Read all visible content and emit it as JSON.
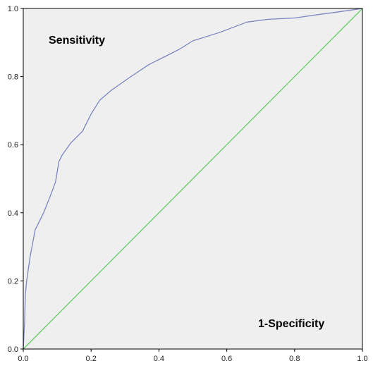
{
  "chart_data": {
    "type": "line",
    "title": "",
    "xlabel": "",
    "ylabel": "",
    "xlim": [
      0.0,
      1.0
    ],
    "ylim": [
      0.0,
      1.0
    ],
    "grid": false,
    "background": "#efefef",
    "x_ticks": [
      "0.0",
      "0.2",
      "0.4",
      "0.6",
      "0.8",
      "1.0"
    ],
    "y_ticks": [
      "0.0",
      "0.2",
      "0.4",
      "0.6",
      "0.8",
      "1.0"
    ],
    "annotations": [
      "Sensitivity",
      "1-Specificity"
    ],
    "series": [
      {
        "color": "#7b86c2",
        "x": [
          0.0,
          0.004,
          0.006,
          0.01,
          0.02,
          0.035,
          0.06,
          0.08,
          0.095,
          0.105,
          0.115,
          0.14,
          0.175,
          0.2,
          0.225,
          0.26,
          0.31,
          0.37,
          0.42,
          0.46,
          0.5,
          0.58,
          0.66,
          0.72,
          0.8,
          0.87,
          0.93,
          1.0
        ],
        "y": [
          0.0,
          0.08,
          0.16,
          0.2,
          0.27,
          0.35,
          0.4,
          0.45,
          0.49,
          0.55,
          0.57,
          0.605,
          0.64,
          0.69,
          0.73,
          0.76,
          0.795,
          0.835,
          0.86,
          0.88,
          0.905,
          0.93,
          0.96,
          0.968,
          0.972,
          0.982,
          0.99,
          1.0
        ]
      },
      {
        "color": "#66cc66",
        "x": [
          0.0,
          1.0
        ],
        "y": [
          0.0,
          1.0
        ]
      }
    ]
  }
}
